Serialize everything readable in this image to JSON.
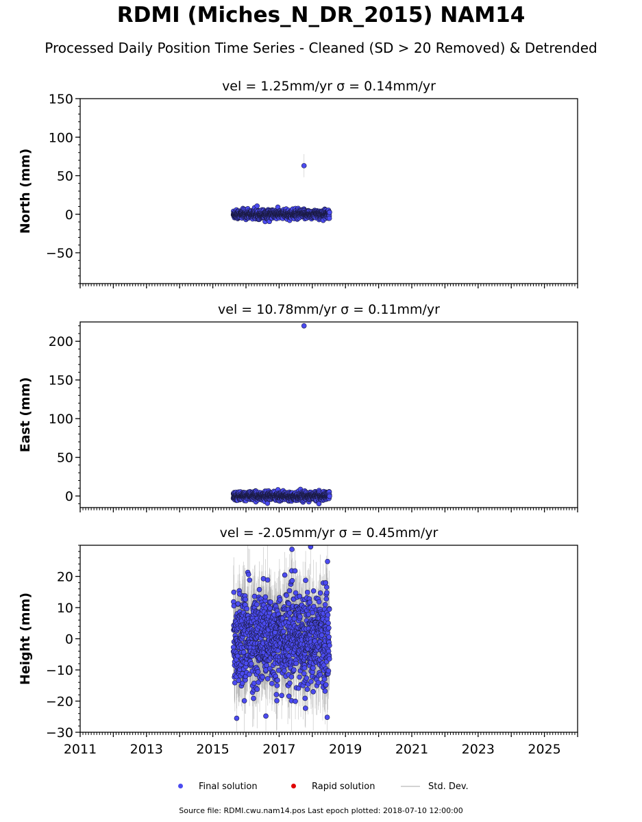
{
  "title": "RDMI (Miches_N_DR_2015) NAM14",
  "subtitle": "Processed Daily Position Time Series - Cleaned (SD > 20 Removed) & Detrended",
  "footer": "Source file: RDMI.cwu.nam14.pos  Last epoch plotted: 2018-07-10 12:00:00",
  "legend": {
    "final": "Final solution",
    "rapid": "Rapid solution",
    "std": "Std. Dev."
  },
  "colors": {
    "final": "#4b4bf0",
    "rapid": "#e00000",
    "std": "#d3d3d3"
  },
  "chart_data": [
    {
      "type": "scatter",
      "title": "vel = 1.25mm/yr   σ = 0.14mm/yr",
      "ylabel": "North (mm)",
      "xlim": [
        2011,
        2026
      ],
      "ylim": [
        -90,
        150
      ],
      "yticks": [
        -50,
        0,
        50,
        100,
        150
      ],
      "start": 2015.62,
      "end": 2018.52,
      "noise": 2.8,
      "sd": 3,
      "outliers": [
        {
          "x": 2017.75,
          "y": 63,
          "sd": 15
        }
      ]
    },
    {
      "type": "scatter",
      "title": "vel = 10.78mm/yr   σ = 0.11mm/yr",
      "ylabel": "East (mm)",
      "xlim": [
        2011,
        2026
      ],
      "ylim": [
        -15,
        225
      ],
      "yticks": [
        0,
        50,
        100,
        150,
        200
      ],
      "start": 2015.62,
      "end": 2018.52,
      "noise": 2.5,
      "sd": 3,
      "outliers": [
        {
          "x": 2017.75,
          "y": 220,
          "sd": 4
        },
        {
          "x": 2018.2,
          "y": -10,
          "sd": 4
        }
      ]
    },
    {
      "type": "scatter",
      "title": "vel = -2.05mm/yr   σ = 0.45mm/yr",
      "ylabel": "Height (mm)",
      "xlim": [
        2011,
        2026
      ],
      "ylim": [
        -30,
        30
      ],
      "yticks": [
        -30,
        -20,
        -10,
        0,
        10,
        20
      ],
      "xticks": [
        2011,
        2013,
        2015,
        2017,
        2019,
        2021,
        2023,
        2025
      ],
      "start": 2015.62,
      "end": 2018.52,
      "noise": 7.5,
      "sd": 9,
      "outliers": [
        {
          "x": 2017.95,
          "y": 29.5,
          "sd": 9
        },
        {
          "x": 2015.72,
          "y": -25.5,
          "sd": 9
        },
        {
          "x": 2016.6,
          "y": -24.8,
          "sd": 9
        },
        {
          "x": 2018.45,
          "y": -25.2,
          "sd": 9
        }
      ]
    }
  ]
}
